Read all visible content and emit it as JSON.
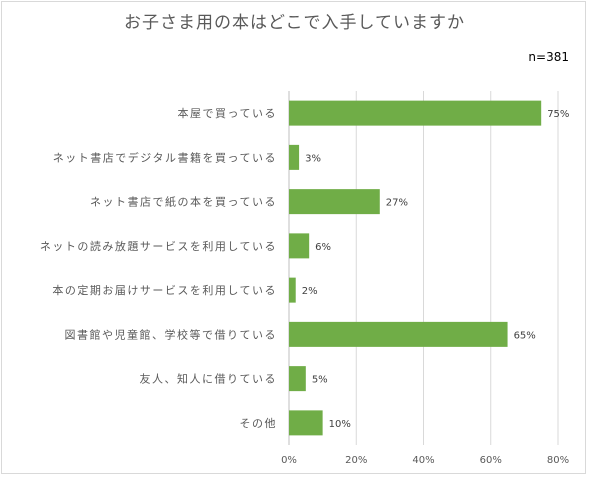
{
  "chart_data": {
    "type": "bar",
    "orientation": "horizontal",
    "title": "お子さま用の本はどこで入手していますか",
    "note": "n=381",
    "categories": [
      "本屋で買っている",
      "ネット書店でデジタル書籍を買っている",
      "ネット書店で紙の本を買っている",
      "ネットの読み放題サービスを利用している",
      "本の定期お届けサービスを利用している",
      "図書館や児童館、学校等で借りている",
      "友人、知人に借りている",
      "その他"
    ],
    "values": [
      75,
      3,
      27,
      6,
      2,
      65,
      5,
      10
    ],
    "data_labels": [
      "75%",
      "3%",
      "27%",
      "6%",
      "2%",
      "65%",
      "5%",
      "10%"
    ],
    "xlim": [
      0,
      80
    ],
    "xticks": [
      "0%",
      "20%",
      "40%",
      "60%",
      "80%"
    ],
    "grid": true,
    "colors": {
      "bar": "#70ad47",
      "grid": "#d9d9d9",
      "text": "#595959"
    }
  }
}
